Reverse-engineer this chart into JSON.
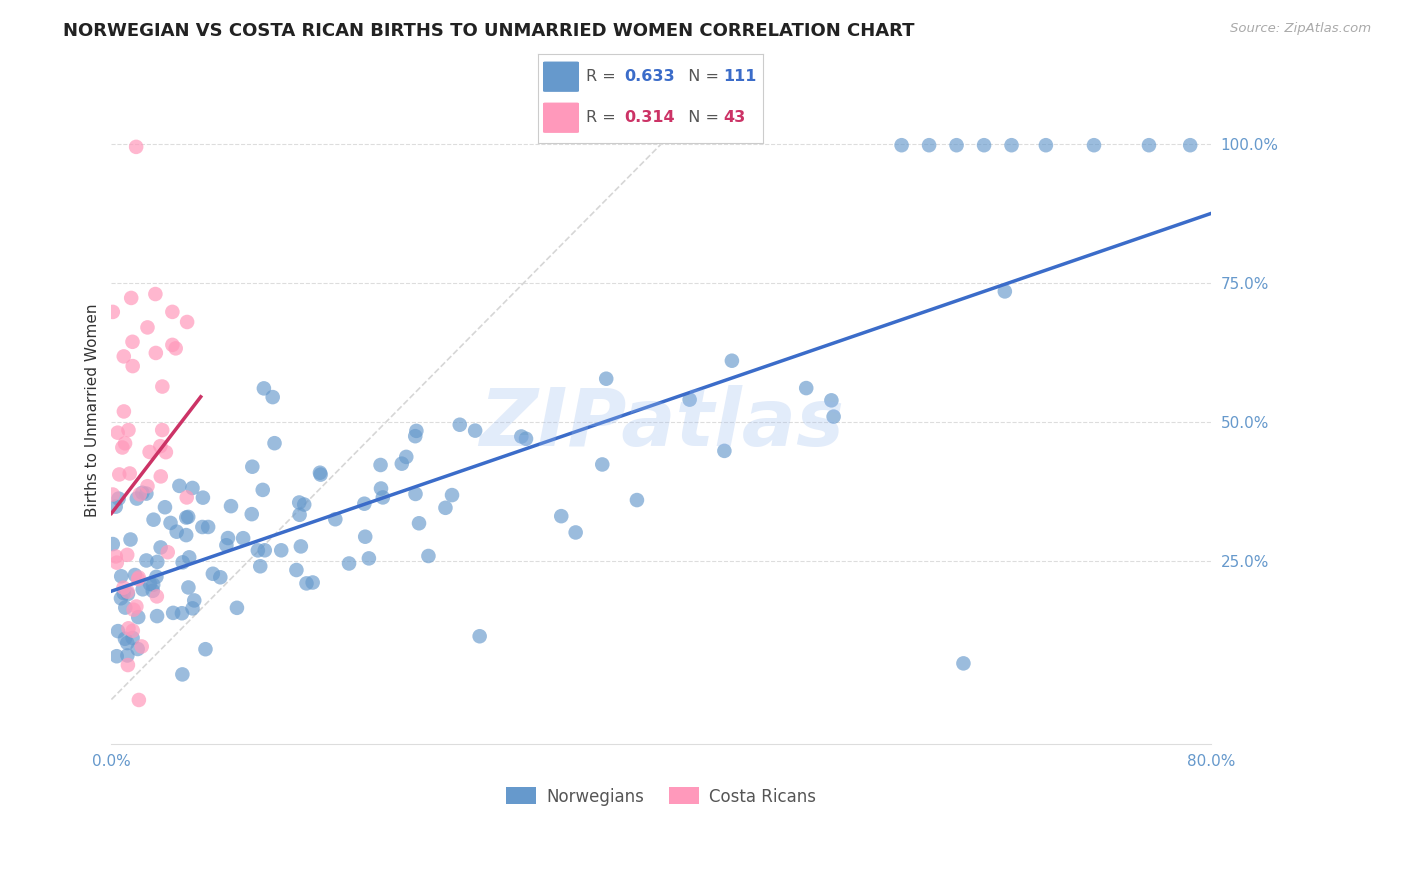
{
  "title": "NORWEGIAN VS COSTA RICAN BIRTHS TO UNMARRIED WOMEN CORRELATION CHART",
  "source": "Source: ZipAtlas.com",
  "ylabel": "Births to Unmarried Women",
  "xlim": [
    0.0,
    0.8
  ],
  "ylim": [
    -0.08,
    1.12
  ],
  "xtick_positions": [
    0.0,
    0.1,
    0.2,
    0.3,
    0.4,
    0.5,
    0.6,
    0.7,
    0.8
  ],
  "xticklabels": [
    "0.0%",
    "",
    "",
    "",
    "",
    "",
    "",
    "",
    "80.0%"
  ],
  "ytick_right": [
    0.25,
    0.5,
    0.75,
    1.0
  ],
  "ytick_right_labels": [
    "25.0%",
    "50.0%",
    "75.0%",
    "100.0%"
  ],
  "blue_color": "#6699CC",
  "pink_color": "#FF99BB",
  "blue_line_color": "#3B6CC9",
  "pink_line_color": "#CC3366",
  "legend_blue_R": "0.633",
  "legend_blue_N": "111",
  "legend_pink_R": "0.314",
  "legend_pink_N": "43",
  "watermark": "ZIPatlas",
  "watermark_color": "#99BBEE",
  "title_fontsize": 13,
  "source_color": "#AAAAAA",
  "ylabel_color": "#333333",
  "axis_tick_color": "#6699CC",
  "blue_seed": 42,
  "pink_seed": 123,
  "blue_n": 111,
  "pink_n": 43,
  "blue_R": 0.633,
  "pink_R": 0.314,
  "blue_line_x0": 0.0,
  "blue_line_y0": 0.195,
  "blue_line_x1": 0.8,
  "blue_line_y1": 0.875,
  "pink_line_x0": 0.0,
  "pink_line_y0": 0.335,
  "pink_line_x1": 0.065,
  "pink_line_y1": 0.545,
  "ref_line_x0": 0.0,
  "ref_line_y0": 0.0,
  "ref_line_x1": 0.4,
  "ref_line_y1": 1.0,
  "dot_size": 110,
  "dot_alpha": 0.65,
  "grid_color": "#DDDDDD",
  "legend_box_color": "#EEEEEE",
  "legend_edge_color": "#CCCCCC"
}
